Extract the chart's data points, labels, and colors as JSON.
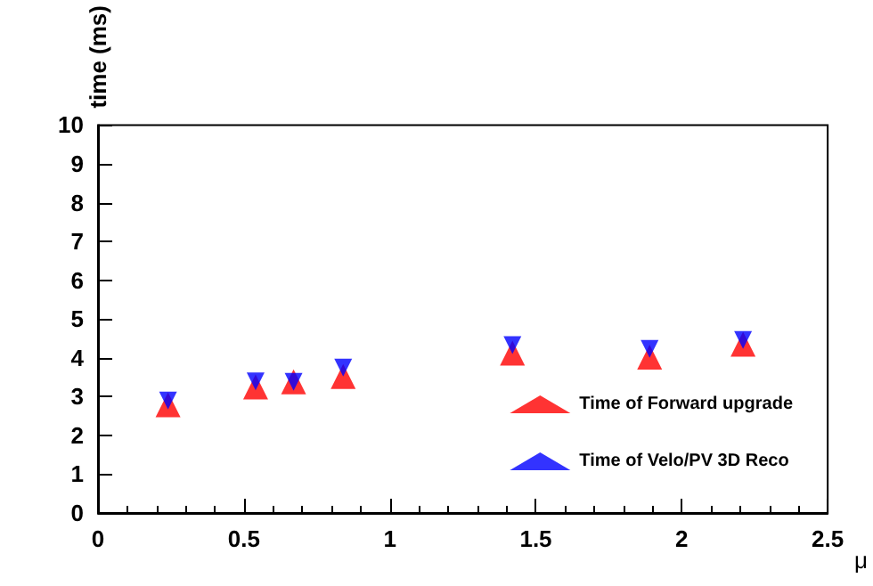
{
  "chart_data": {
    "type": "scatter",
    "xlabel": "μ",
    "ylabel": "time (ms)",
    "x": [
      0.24,
      0.54,
      0.67,
      0.84,
      1.42,
      1.89,
      2.21
    ],
    "series": [
      {
        "name": "Time of Forward upgrade",
        "color": "#ff0000",
        "marker": "triangle",
        "values": [
          2.79,
          3.25,
          3.38,
          3.52,
          4.12,
          4.02,
          4.35
        ]
      },
      {
        "name": "Time of Velo/PV 3D Reco",
        "color": "#0000ff",
        "marker": "triangle-down",
        "values": [
          2.9,
          3.39,
          3.38,
          3.75,
          4.33,
          4.23,
          4.46
        ]
      }
    ],
    "xlim": [
      0,
      2.5
    ],
    "xticks": [
      0,
      0.5,
      1,
      1.5,
      2,
      2.5
    ],
    "ylim": [
      0,
      10
    ],
    "yticks": [
      0,
      1,
      2,
      3,
      4,
      5,
      6,
      7,
      8,
      9,
      10
    ],
    "grid": false,
    "legend": "bottom right"
  }
}
